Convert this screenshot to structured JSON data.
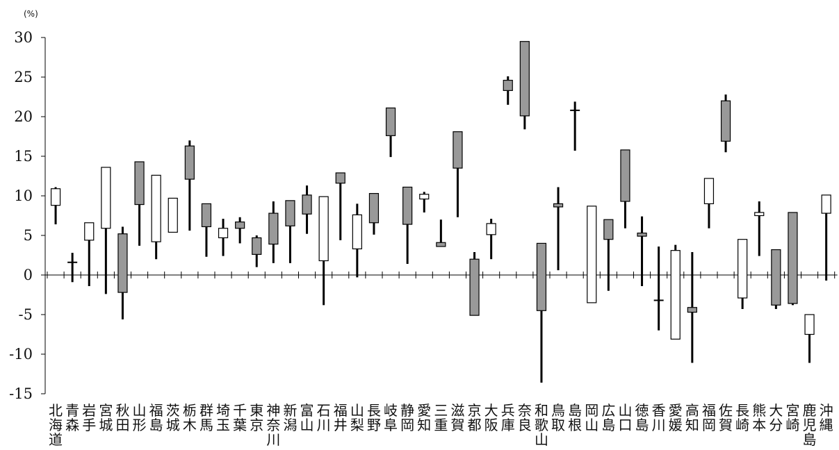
{
  "chart_data": {
    "type": "candlestick",
    "ylabel": "(%)",
    "ylim": [
      -15,
      30
    ],
    "y_ticks": [
      30,
      25,
      20,
      15,
      10,
      5,
      0,
      -5,
      -10,
      -15
    ],
    "colors": {
      "up": "#ffffff",
      "down": "#999999",
      "stroke": "#000000"
    },
    "categories": [
      "北海道",
      "青森",
      "岩手",
      "宮城",
      "秋田",
      "山形",
      "福島",
      "茨城",
      "栃木",
      "群馬",
      "埼玉",
      "千葉",
      "東京",
      "神奈川",
      "新潟",
      "富山",
      "石川",
      "福井",
      "山梨",
      "長野",
      "岐阜",
      "静岡",
      "愛知",
      "三重",
      "滋賀",
      "京都",
      "大阪",
      "兵庫",
      "奈良",
      "和歌山",
      "鳥取",
      "島根",
      "岡山",
      "広島",
      "山口",
      "徳島",
      "香川",
      "愛媛",
      "高知",
      "福岡",
      "佐賀",
      "長崎",
      "熊本",
      "大分",
      "宮崎",
      "鹿児島",
      "沖縄"
    ],
    "series": [
      {
        "open": 8.8,
        "close": 10.9,
        "high": 11.1,
        "low": 6.4
      },
      {
        "open": 1.6,
        "close": 1.8,
        "high": 2.8,
        "low": -0.9
      },
      {
        "open": 4.4,
        "close": 6.6,
        "high": 6.6,
        "low": -1.4
      },
      {
        "open": 5.9,
        "close": 13.6,
        "high": 13.6,
        "low": -2.4
      },
      {
        "open": 5.2,
        "close": -2.2,
        "high": 6.1,
        "low": -5.6
      },
      {
        "open": 14.3,
        "close": 8.9,
        "high": 14.3,
        "low": 3.7
      },
      {
        "open": 4.2,
        "close": 12.6,
        "high": 12.6,
        "low": 2.0
      },
      {
        "open": 5.4,
        "close": 9.7,
        "high": 9.7,
        "low": 5.4
      },
      {
        "open": 16.3,
        "close": 12.1,
        "high": 17.0,
        "low": 5.6
      },
      {
        "open": 9.0,
        "close": 6.1,
        "high": 9.0,
        "low": 2.3
      },
      {
        "open": 4.7,
        "close": 5.9,
        "high": 7.1,
        "low": 2.4
      },
      {
        "open": 6.7,
        "close": 5.9,
        "high": 7.3,
        "low": 4.0
      },
      {
        "open": 4.7,
        "close": 2.6,
        "high": 5.0,
        "low": 1.0
      },
      {
        "open": 7.8,
        "close": 3.9,
        "high": 9.3,
        "low": 1.5
      },
      {
        "open": 9.4,
        "close": 6.2,
        "high": 9.4,
        "low": 1.5
      },
      {
        "open": 10.1,
        "close": 7.7,
        "high": 11.3,
        "low": 5.2
      },
      {
        "open": 1.8,
        "close": 9.9,
        "high": 9.9,
        "low": -3.8
      },
      {
        "open": 12.9,
        "close": 11.6,
        "high": 12.9,
        "low": 4.4
      },
      {
        "open": 3.3,
        "close": 7.6,
        "high": 9.0,
        "low": -0.3
      },
      {
        "open": 10.3,
        "close": 6.6,
        "high": 10.3,
        "low": 5.1
      },
      {
        "open": 21.1,
        "close": 17.6,
        "high": 21.1,
        "low": 14.9
      },
      {
        "open": 11.1,
        "close": 6.4,
        "high": 11.1,
        "low": 1.4
      },
      {
        "open": 9.6,
        "close": 10.2,
        "high": 10.5,
        "low": 7.9
      },
      {
        "open": 4.1,
        "close": 3.6,
        "high": 7.0,
        "low": 3.6
      },
      {
        "open": 18.1,
        "close": 13.5,
        "high": 18.1,
        "low": 7.3
      },
      {
        "open": 2.0,
        "close": -5.1,
        "high": 2.9,
        "low": -5.1
      },
      {
        "open": 5.1,
        "close": 6.5,
        "high": 7.1,
        "low": 2.0
      },
      {
        "open": 24.6,
        "close": 23.3,
        "high": 25.1,
        "low": 21.5
      },
      {
        "open": 29.5,
        "close": 20.1,
        "high": 29.5,
        "low": 18.4
      },
      {
        "open": 4.0,
        "close": -4.5,
        "high": 4.0,
        "low": -13.6
      },
      {
        "open": 9.0,
        "close": 8.6,
        "high": 11.1,
        "low": 0.6
      },
      {
        "open": 20.8,
        "close": 20.8,
        "high": 21.9,
        "low": 15.7
      },
      {
        "open": -3.5,
        "close": 8.7,
        "high": 8.7,
        "low": -3.5
      },
      {
        "open": 7.0,
        "close": 4.5,
        "high": 7.0,
        "low": -2.0
      },
      {
        "open": 15.8,
        "close": 9.3,
        "high": 15.8,
        "low": 5.9
      },
      {
        "open": 5.3,
        "close": 4.9,
        "high": 7.4,
        "low": -1.4
      },
      {
        "open": -3.2,
        "close": -3.2,
        "high": 3.6,
        "low": -7.0
      },
      {
        "open": -8.1,
        "close": 3.1,
        "high": 3.8,
        "low": -8.1
      },
      {
        "open": -4.1,
        "close": -4.7,
        "high": 2.9,
        "low": -11.1
      },
      {
        "open": 9.0,
        "close": 12.2,
        "high": 12.2,
        "low": 5.9
      },
      {
        "open": 22.0,
        "close": 16.9,
        "high": 22.8,
        "low": 15.5
      },
      {
        "open": -2.9,
        "close": 4.5,
        "high": 4.5,
        "low": -4.3
      },
      {
        "open": 7.5,
        "close": 7.9,
        "high": 9.3,
        "low": 2.4
      },
      {
        "open": 3.2,
        "close": -3.8,
        "high": 3.2,
        "low": -4.3
      },
      {
        "open": 7.9,
        "close": -3.6,
        "high": 7.9,
        "low": -3.8
      },
      {
        "open": -7.5,
        "close": -5.0,
        "high": -5.0,
        "low": -11.1
      },
      {
        "open": 7.8,
        "close": 10.1,
        "high": 10.1,
        "low": -0.7
      }
    ]
  }
}
